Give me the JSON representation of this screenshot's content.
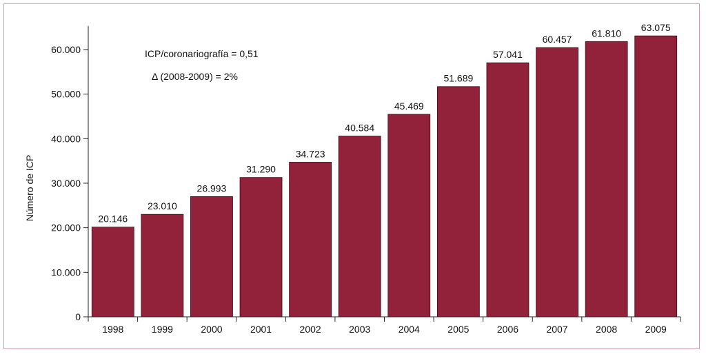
{
  "chart_data": {
    "type": "bar",
    "categories": [
      "1998",
      "1999",
      "2000",
      "2001",
      "2002",
      "2003",
      "2004",
      "2005",
      "2006",
      "2007",
      "2008",
      "2009"
    ],
    "values": [
      20146,
      23010,
      26993,
      31290,
      34723,
      40584,
      45469,
      51689,
      57041,
      60457,
      61810,
      63075
    ],
    "value_labels": [
      "20.146",
      "23.010",
      "26.993",
      "31.290",
      "34.723",
      "40.584",
      "45.469",
      "51.689",
      "57.041",
      "60.457",
      "61.810",
      "63.075"
    ],
    "ylabel": "Número de ICP",
    "xlabel": "",
    "ylim": [
      0,
      65000
    ],
    "yticks": [
      0,
      10000,
      20000,
      30000,
      40000,
      50000,
      60000
    ],
    "ytick_labels": [
      "0",
      "10.000",
      "20.000",
      "30.000",
      "40.000",
      "50.000",
      "60.000"
    ],
    "annotations": [
      "ICP/coronariografía = 0,51",
      "Δ  (2008-2009) = 2%"
    ],
    "grid": false,
    "bar_color": "#92223a",
    "frame_color": "#c7a0aa"
  }
}
